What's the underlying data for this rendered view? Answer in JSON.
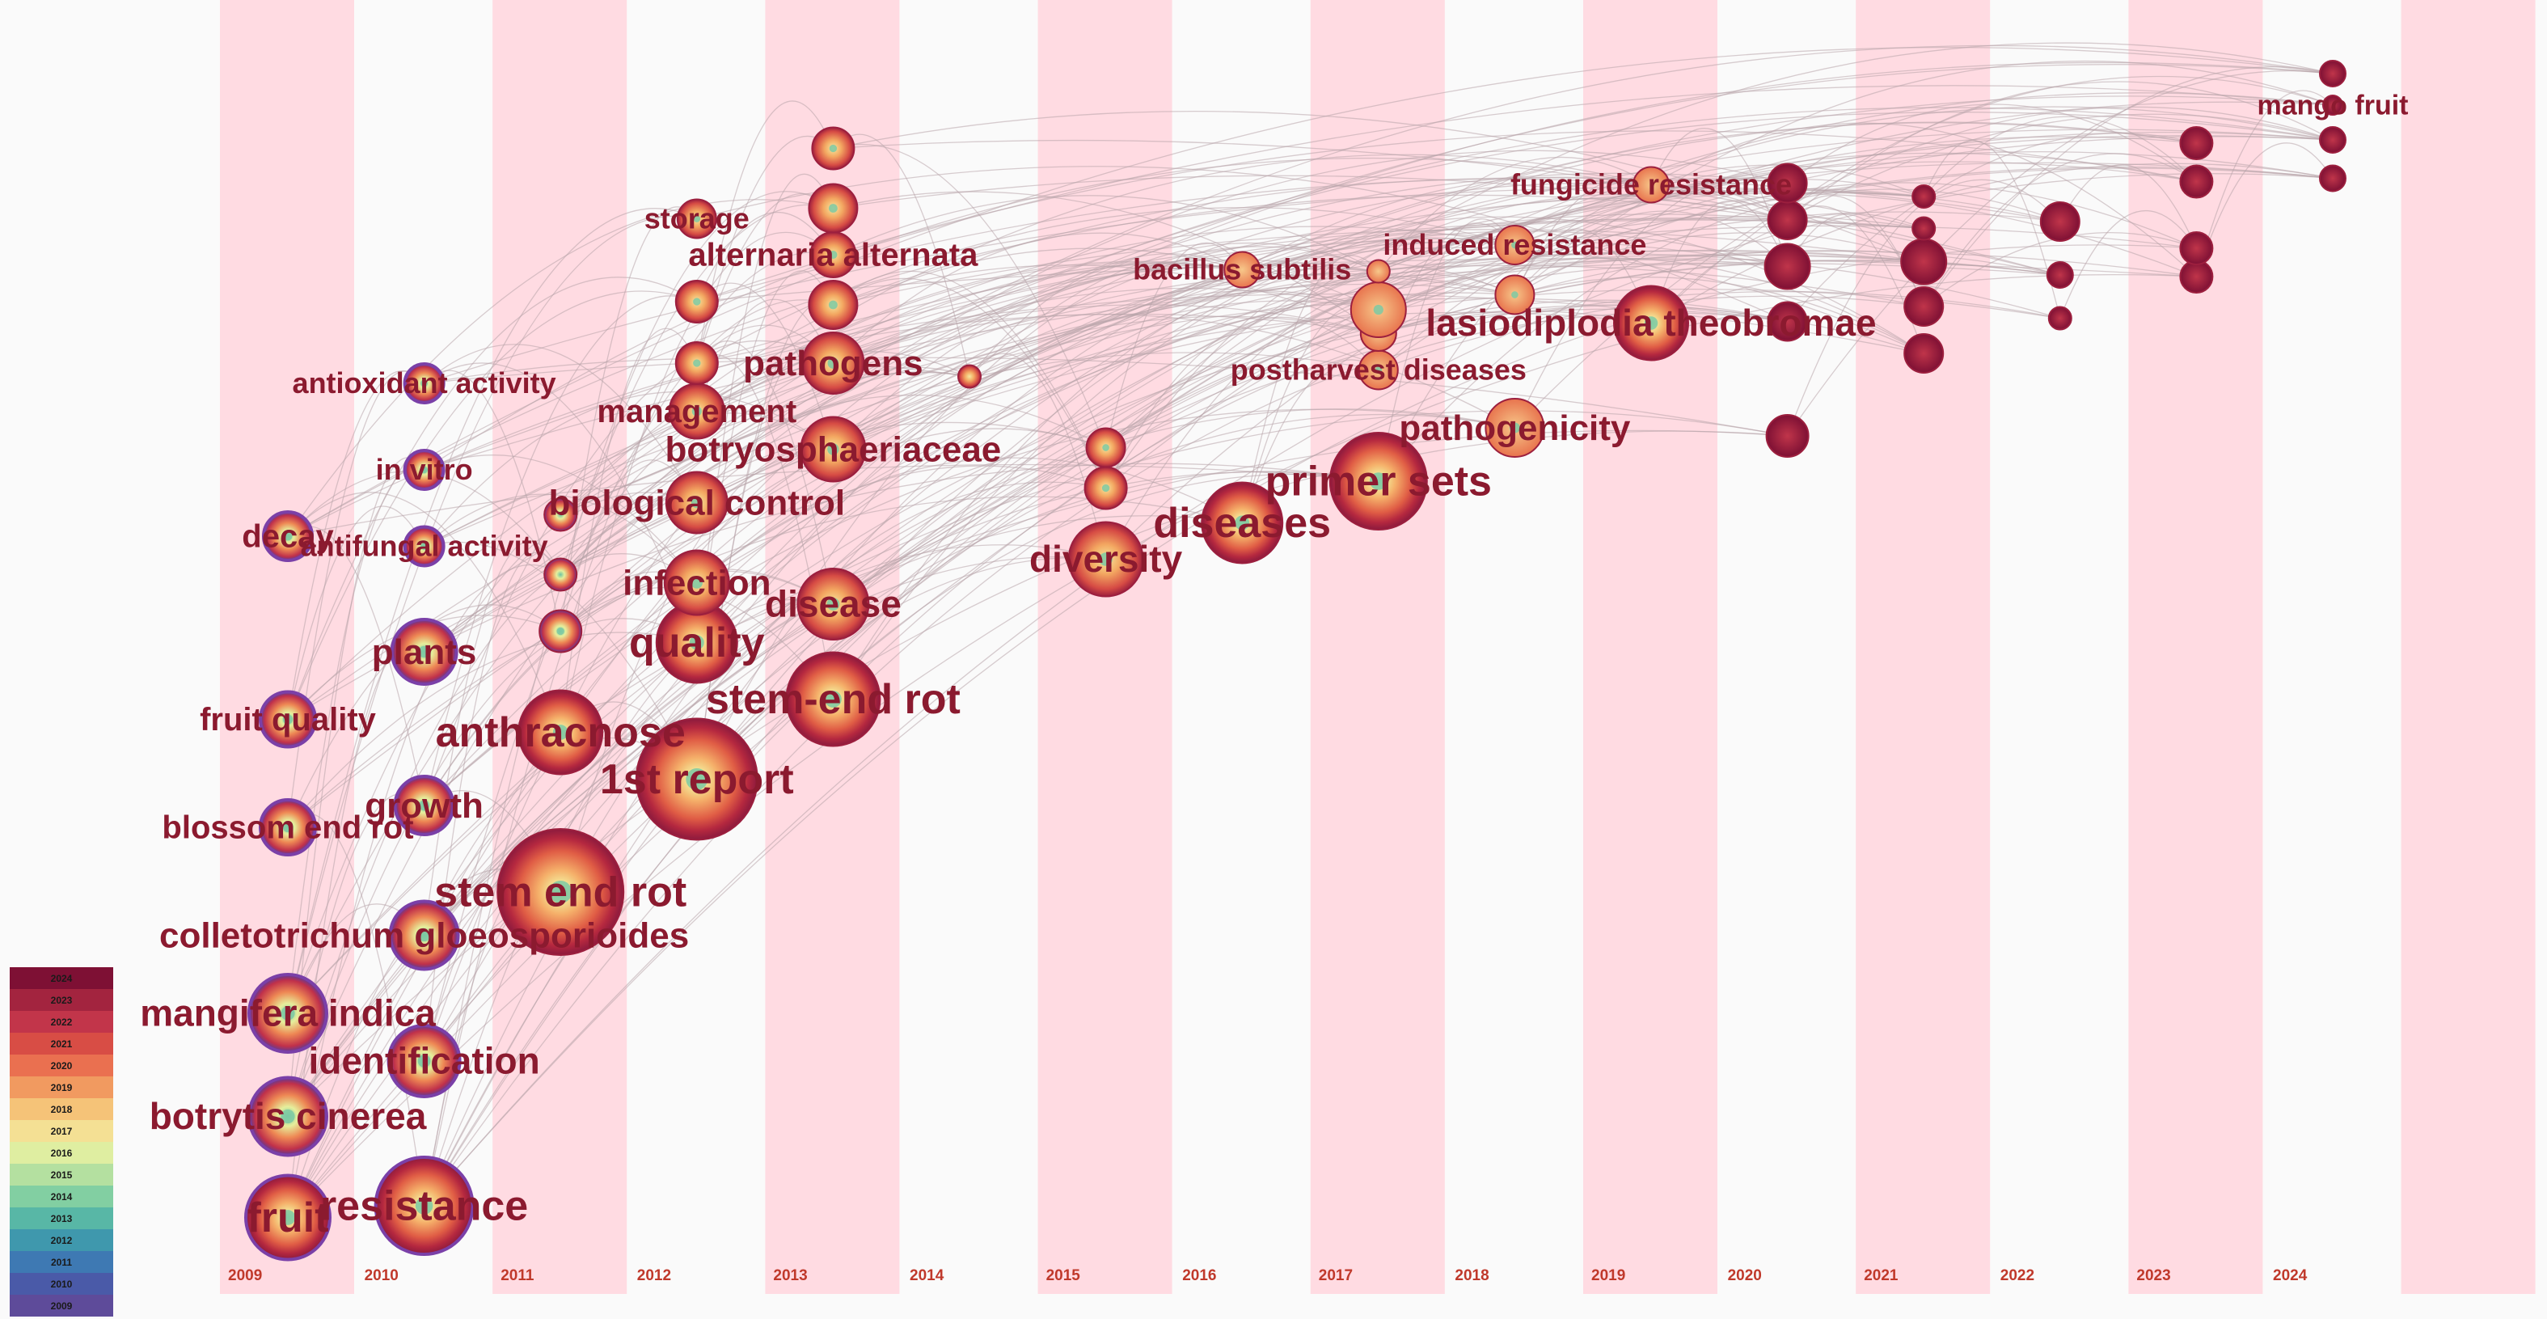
{
  "chart_data": {
    "type": "timezone",
    "x_axis": {
      "years": [
        "2009",
        "2010",
        "2011",
        "2012",
        "2013",
        "2014",
        "2015",
        "2016",
        "2017",
        "2018",
        "2019",
        "2020",
        "2021",
        "2022",
        "2023",
        "2024"
      ]
    },
    "legend": {
      "years": [
        "2024",
        "2023",
        "2022",
        "2021",
        "2020",
        "2019",
        "2018",
        "2017",
        "2016",
        "2015",
        "2014",
        "2013",
        "2012",
        "2011",
        "2010",
        "2009"
      ],
      "colors": [
        "#7e1034",
        "#a3243f",
        "#c2354a",
        "#d84d45",
        "#ea7050",
        "#f19a60",
        "#f5c378",
        "#f4e094",
        "#dfeea1",
        "#b4e0a0",
        "#82cfa2",
        "#58b7a6",
        "#3f98ad",
        "#3e79b3",
        "#4a5aa8",
        "#5e4b9a"
      ]
    },
    "nodes": [
      {
        "label": "fruit",
        "year": 2009,
        "size": 52,
        "y": 1.09
      },
      {
        "label": "botrytis cinerea",
        "year": 2009,
        "size": 48,
        "y": 3.59
      },
      {
        "label": "mangifera indica",
        "year": 2009,
        "size": 48,
        "y": 6.14
      },
      {
        "label": "blossom end rot",
        "year": 2009,
        "size": 34,
        "y": 10.74
      },
      {
        "label": "fruit quality",
        "year": 2009,
        "size": 34,
        "y": 13.41
      },
      {
        "label": "decay",
        "year": 2009,
        "size": 30,
        "y": 17.94
      },
      {
        "label": "resistance",
        "year": 2010,
        "size": 60,
        "y": 1.38
      },
      {
        "label": "identification",
        "year": 2010,
        "size": 44,
        "y": 4.96
      },
      {
        "label": "colletotrichum gloeosporioides",
        "year": 2010,
        "size": 42,
        "y": 8.07
      },
      {
        "label": "growth",
        "year": 2010,
        "size": 36,
        "y": 11.28
      },
      {
        "label": "plants",
        "year": 2010,
        "size": 40,
        "y": 15.08
      },
      {
        "label": "antifungal activity",
        "year": 2010,
        "size": 24,
        "y": 17.69
      },
      {
        "label": "in vitro",
        "year": 2010,
        "size": 24,
        "y": 19.58
      },
      {
        "label": "antioxidant activity",
        "year": 2010,
        "size": 24,
        "y": 21.72
      },
      {
        "label": "stem end rot",
        "year": 2011,
        "size": 78,
        "y": 9.14
      },
      {
        "label": "anthracnose",
        "year": 2011,
        "size": 52,
        "y": 13.09
      },
      {
        "label": "",
        "year": 2011,
        "size": 26,
        "y": 15.59
      },
      {
        "label": "",
        "year": 2011,
        "size": 20,
        "y": 16.99
      },
      {
        "label": "",
        "year": 2011,
        "size": 20,
        "y": 18.47
      },
      {
        "label": "1st report",
        "year": 2012,
        "size": 75,
        "y": 11.93
      },
      {
        "label": "quality",
        "year": 2012,
        "size": 50,
        "y": 15.31
      },
      {
        "label": "infection",
        "year": 2012,
        "size": 40,
        "y": 16.79
      },
      {
        "label": "biological control",
        "year": 2012,
        "size": 38,
        "y": 18.77
      },
      {
        "label": "management",
        "year": 2012,
        "size": 34,
        "y": 21.03
      },
      {
        "label": "",
        "year": 2012,
        "size": 26,
        "y": 22.22
      },
      {
        "label": "",
        "year": 2012,
        "size": 26,
        "y": 23.74
      },
      {
        "label": "storage",
        "year": 2012,
        "size": 24,
        "y": 25.79
      },
      {
        "label": "stem-end rot",
        "year": 2013,
        "size": 58,
        "y": 13.91
      },
      {
        "label": "disease",
        "year": 2013,
        "size": 44,
        "y": 16.26
      },
      {
        "label": "botryosphaeriaceae",
        "year": 2013,
        "size": 40,
        "y": 20.09
      },
      {
        "label": "pathogens",
        "year": 2013,
        "size": 38,
        "y": 22.22
      },
      {
        "label": "",
        "year": 2013,
        "size": 30,
        "y": 23.66
      },
      {
        "label": "alternaria alternata",
        "year": 2013,
        "size": 28,
        "y": 24.9
      },
      {
        "label": "",
        "year": 2013,
        "size": 30,
        "y": 26.05
      },
      {
        "label": "",
        "year": 2013,
        "size": 26,
        "y": 27.53
      },
      {
        "label": "",
        "year": 2014,
        "size": 14,
        "y": 21.89
      },
      {
        "label": "diversity",
        "year": 2015,
        "size": 46,
        "y": 17.37
      },
      {
        "label": "",
        "year": 2015,
        "size": 26,
        "y": 19.13
      },
      {
        "label": "",
        "year": 2015,
        "size": 24,
        "y": 20.13
      },
      {
        "label": "diseases",
        "year": 2016,
        "size": 50,
        "y": 18.27
      },
      {
        "label": "bacillus subtilis",
        "year": 2016,
        "size": 22,
        "y": 24.53
      },
      {
        "label": "primer sets",
        "year": 2017,
        "size": 60,
        "y": 19.3
      },
      {
        "label": "postharvest diseases",
        "year": 2017,
        "size": 24,
        "y": 22.05
      },
      {
        "label": "",
        "year": 2017,
        "size": 22,
        "y": 22.96
      },
      {
        "label": "",
        "year": 2017,
        "size": 34,
        "y": 23.54
      },
      {
        "label": "",
        "year": 2017,
        "size": 14,
        "y": 24.49
      },
      {
        "label": "pathogenicity",
        "year": 2018,
        "size": 36,
        "y": 20.62
      },
      {
        "label": "",
        "year": 2018,
        "size": 24,
        "y": 23.91
      },
      {
        "label": "induced resistance",
        "year": 2018,
        "size": 24,
        "y": 25.14
      },
      {
        "label": "lasiodiplodia theobromae",
        "year": 2019,
        "size": 46,
        "y": 23.21
      },
      {
        "label": "fungicide resistance",
        "year": 2019,
        "size": 22,
        "y": 26.63
      },
      {
        "label": "",
        "year": 2020,
        "size": 26,
        "y": 20.42
      },
      {
        "label": "",
        "year": 2020,
        "size": 24,
        "y": 23.25
      },
      {
        "label": "",
        "year": 2020,
        "size": 28,
        "y": 24.61
      },
      {
        "label": "",
        "year": 2020,
        "size": 24,
        "y": 25.76
      },
      {
        "label": "",
        "year": 2020,
        "size": 24,
        "y": 26.67
      },
      {
        "label": "",
        "year": 2021,
        "size": 24,
        "y": 22.46
      },
      {
        "label": "",
        "year": 2021,
        "size": 24,
        "y": 23.62
      },
      {
        "label": "",
        "year": 2021,
        "size": 28,
        "y": 24.73
      },
      {
        "label": "",
        "year": 2021,
        "size": 14,
        "y": 25.55
      },
      {
        "label": "",
        "year": 2021,
        "size": 14,
        "y": 26.34
      },
      {
        "label": "",
        "year": 2022,
        "size": 14,
        "y": 23.33
      },
      {
        "label": "",
        "year": 2022,
        "size": 16,
        "y": 24.4
      },
      {
        "label": "",
        "year": 2022,
        "size": 24,
        "y": 25.72
      },
      {
        "label": "",
        "year": 2023,
        "size": 20,
        "y": 24.36
      },
      {
        "label": "",
        "year": 2023,
        "size": 20,
        "y": 25.06
      },
      {
        "label": "",
        "year": 2023,
        "size": 20,
        "y": 26.71
      },
      {
        "label": "",
        "year": 2023,
        "size": 20,
        "y": 27.66
      },
      {
        "label": "",
        "year": 2024,
        "size": 16,
        "y": 26.79
      },
      {
        "label": "",
        "year": 2024,
        "size": 16,
        "y": 27.74
      },
      {
        "label": "mango fruit",
        "year": 2024,
        "size": 12,
        "y": 28.6
      },
      {
        "label": "",
        "year": 2024,
        "size": 16,
        "y": 29.38
      }
    ]
  }
}
